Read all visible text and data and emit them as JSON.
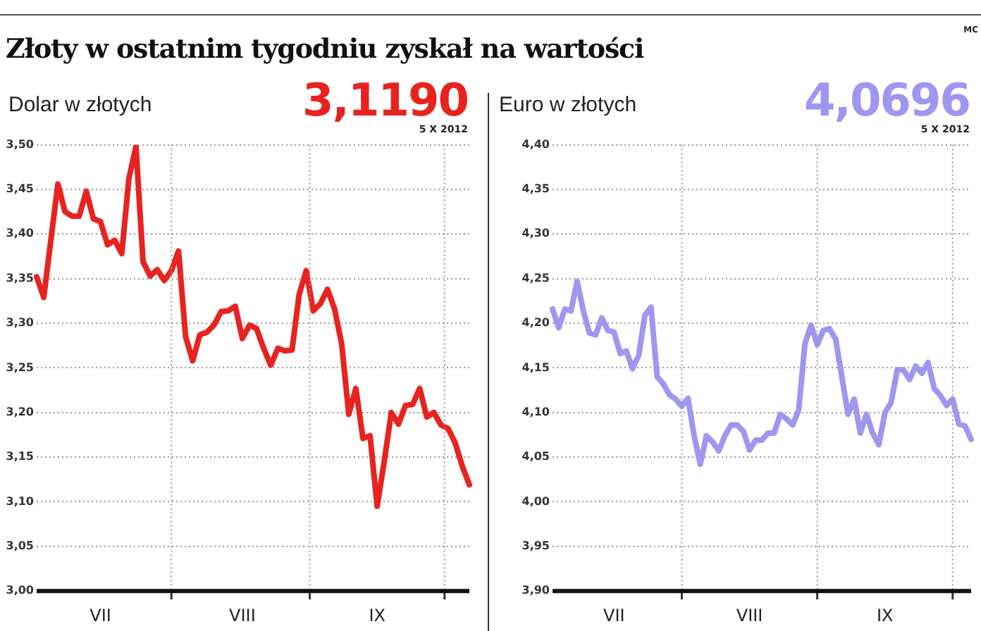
{
  "chart_data": [
    {
      "type": "line",
      "title": "Złoty w ostatnim tygodniu zyskał na wartości",
      "subtitle": "Dolar w złotych",
      "annotations": [
        "3,1190",
        "5 X 2012"
      ],
      "categories": [
        null,
        null,
        null,
        null,
        null,
        null,
        null,
        null,
        null,
        "VII",
        null,
        null,
        null,
        null,
        null,
        null,
        null,
        null,
        null,
        null,
        null,
        null,
        null,
        null,
        null,
        null,
        null,
        null,
        null,
        "VIII",
        null,
        null,
        null,
        null,
        null,
        null,
        null,
        null,
        null,
        null,
        null,
        null,
        null,
        null,
        null,
        null,
        null,
        null,
        "IX",
        null,
        null,
        null,
        null,
        null,
        null,
        null,
        null,
        null,
        null,
        null,
        null,
        null
      ],
      "series": [
        {
          "color": "#e8231f",
          "values": [
            3.352,
            3.329,
            3.393,
            3.456,
            3.425,
            3.42,
            3.42,
            3.448,
            3.417,
            3.414,
            3.388,
            3.393,
            3.378,
            3.462,
            3.498,
            3.369,
            3.353,
            3.36,
            3.348,
            3.359,
            3.381,
            3.285,
            3.258,
            3.287,
            3.29,
            3.298,
            3.313,
            3.314,
            3.319,
            3.283,
            3.298,
            3.294,
            3.272,
            3.253,
            3.272,
            3.269,
            3.27,
            3.332,
            3.359,
            3.314,
            3.322,
            3.338,
            3.316,
            3.277,
            3.198,
            3.227,
            3.171,
            3.174,
            3.095,
            3.145,
            3.2,
            3.187,
            3.208,
            3.209,
            3.227,
            3.195,
            3.2,
            3.186,
            3.182,
            3.166,
            3.14,
            3.119
          ]
        }
      ],
      "ylim": [
        3.0,
        3.5
      ],
      "yticks": [
        {
          "value": 3.0,
          "label": "3,00"
        },
        {
          "value": 3.05,
          "label": "3,05"
        },
        {
          "value": 3.1,
          "label": "3,10"
        },
        {
          "value": 3.15,
          "label": "3,15"
        },
        {
          "value": 3.2,
          "label": "3,20"
        },
        {
          "value": 3.25,
          "label": "3,25"
        },
        {
          "value": 3.3,
          "label": "3,30"
        },
        {
          "value": 3.35,
          "label": "3,35"
        },
        {
          "value": 3.4,
          "label": "3,40"
        },
        {
          "value": 3.45,
          "label": "3,45"
        },
        {
          "value": 3.5,
          "label": "3,50"
        }
      ],
      "grid": true,
      "legend": false,
      "marker": "none"
    },
    {
      "type": "line",
      "subtitle": "Euro w złotych",
      "annotations": [
        "4,0696",
        "5 X 2012",
        "MC"
      ],
      "categories": [
        null,
        null,
        null,
        null,
        null,
        null,
        null,
        null,
        null,
        null,
        "VII",
        null,
        null,
        null,
        null,
        null,
        null,
        null,
        null,
        null,
        null,
        null,
        null,
        null,
        null,
        null,
        null,
        null,
        null,
        null,
        null,
        null,
        "VIII",
        null,
        null,
        null,
        null,
        null,
        null,
        null,
        null,
        null,
        null,
        null,
        null,
        null,
        null,
        null,
        null,
        null,
        null,
        null,
        null,
        null,
        "IX",
        null,
        null,
        null,
        null,
        null,
        null,
        null,
        null,
        null,
        null,
        null,
        null,
        null,
        null
      ],
      "series": [
        {
          "color": "#9d97f0",
          "values": [
            4.216,
            4.195,
            4.216,
            4.214,
            4.247,
            4.214,
            4.189,
            4.187,
            4.206,
            4.192,
            4.19,
            4.166,
            4.169,
            4.149,
            4.164,
            4.209,
            4.218,
            4.14,
            4.132,
            4.12,
            4.115,
            4.107,
            4.116,
            4.074,
            4.042,
            4.074,
            4.067,
            4.057,
            4.074,
            4.086,
            4.086,
            4.079,
            4.058,
            4.069,
            4.069,
            4.077,
            4.077,
            4.098,
            4.093,
            4.086,
            4.103,
            4.177,
            4.198,
            4.176,
            4.192,
            4.194,
            4.182,
            4.14,
            4.098,
            4.115,
            4.077,
            4.098,
            4.077,
            4.064,
            4.1,
            4.111,
            4.148,
            4.148,
            4.137,
            4.152,
            4.144,
            4.156,
            4.127,
            4.119,
            4.108,
            4.115,
            4.087,
            4.085,
            4.07
          ]
        }
      ],
      "ylim": [
        3.9,
        4.4
      ],
      "yticks": [
        {
          "value": 3.9,
          "label": "3,90"
        },
        {
          "value": 3.95,
          "label": "3,95"
        },
        {
          "value": 4.0,
          "label": "4,00"
        },
        {
          "value": 4.05,
          "label": "4,05"
        },
        {
          "value": 4.1,
          "label": "4,10"
        },
        {
          "value": 4.15,
          "label": "4,15"
        },
        {
          "value": 4.2,
          "label": "4,20"
        },
        {
          "value": 4.25,
          "label": "4,25"
        },
        {
          "value": 4.3,
          "label": "4,30"
        },
        {
          "value": 4.35,
          "label": "4,35"
        },
        {
          "value": 4.4,
          "label": "4,40"
        }
      ],
      "grid": true,
      "legend": false,
      "marker": "none"
    }
  ]
}
